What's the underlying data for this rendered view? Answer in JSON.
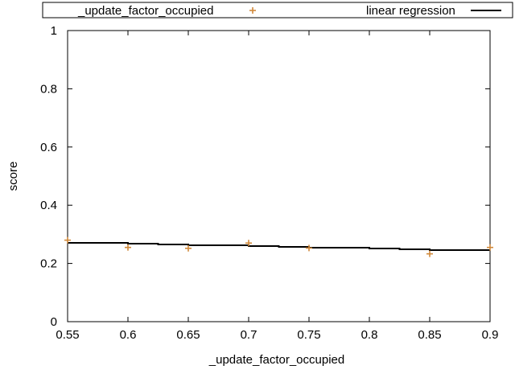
{
  "chart_data": {
    "type": "scatter",
    "xlabel": "_update_factor_occupied",
    "ylabel": "score",
    "xlim": [
      0.55,
      0.9
    ],
    "ylim": [
      0,
      1
    ],
    "grid": false,
    "legend_position": "top, outside plot area",
    "x_ticks": [
      "0.55",
      "0.6",
      "0.65",
      "0.7",
      "0.75",
      "0.8",
      "0.85",
      "0.9"
    ],
    "y_ticks": [
      "0",
      "0.2",
      "0.4",
      "0.6",
      "0.8",
      "1"
    ],
    "series": [
      {
        "name": "_update_factor_occupied",
        "kind": "points",
        "marker": "plus",
        "color": "#d0893a",
        "x": [
          0.55,
          0.6,
          0.65,
          0.7,
          0.75,
          0.85,
          0.9
        ],
        "y": [
          0.28,
          0.255,
          0.252,
          0.27,
          0.253,
          0.233,
          0.255
        ]
      },
      {
        "name": "linear regression",
        "kind": "step-line",
        "color": "#000000",
        "x": [
          0.55,
          0.9
        ],
        "y": [
          0.272,
          0.245
        ]
      }
    ]
  }
}
